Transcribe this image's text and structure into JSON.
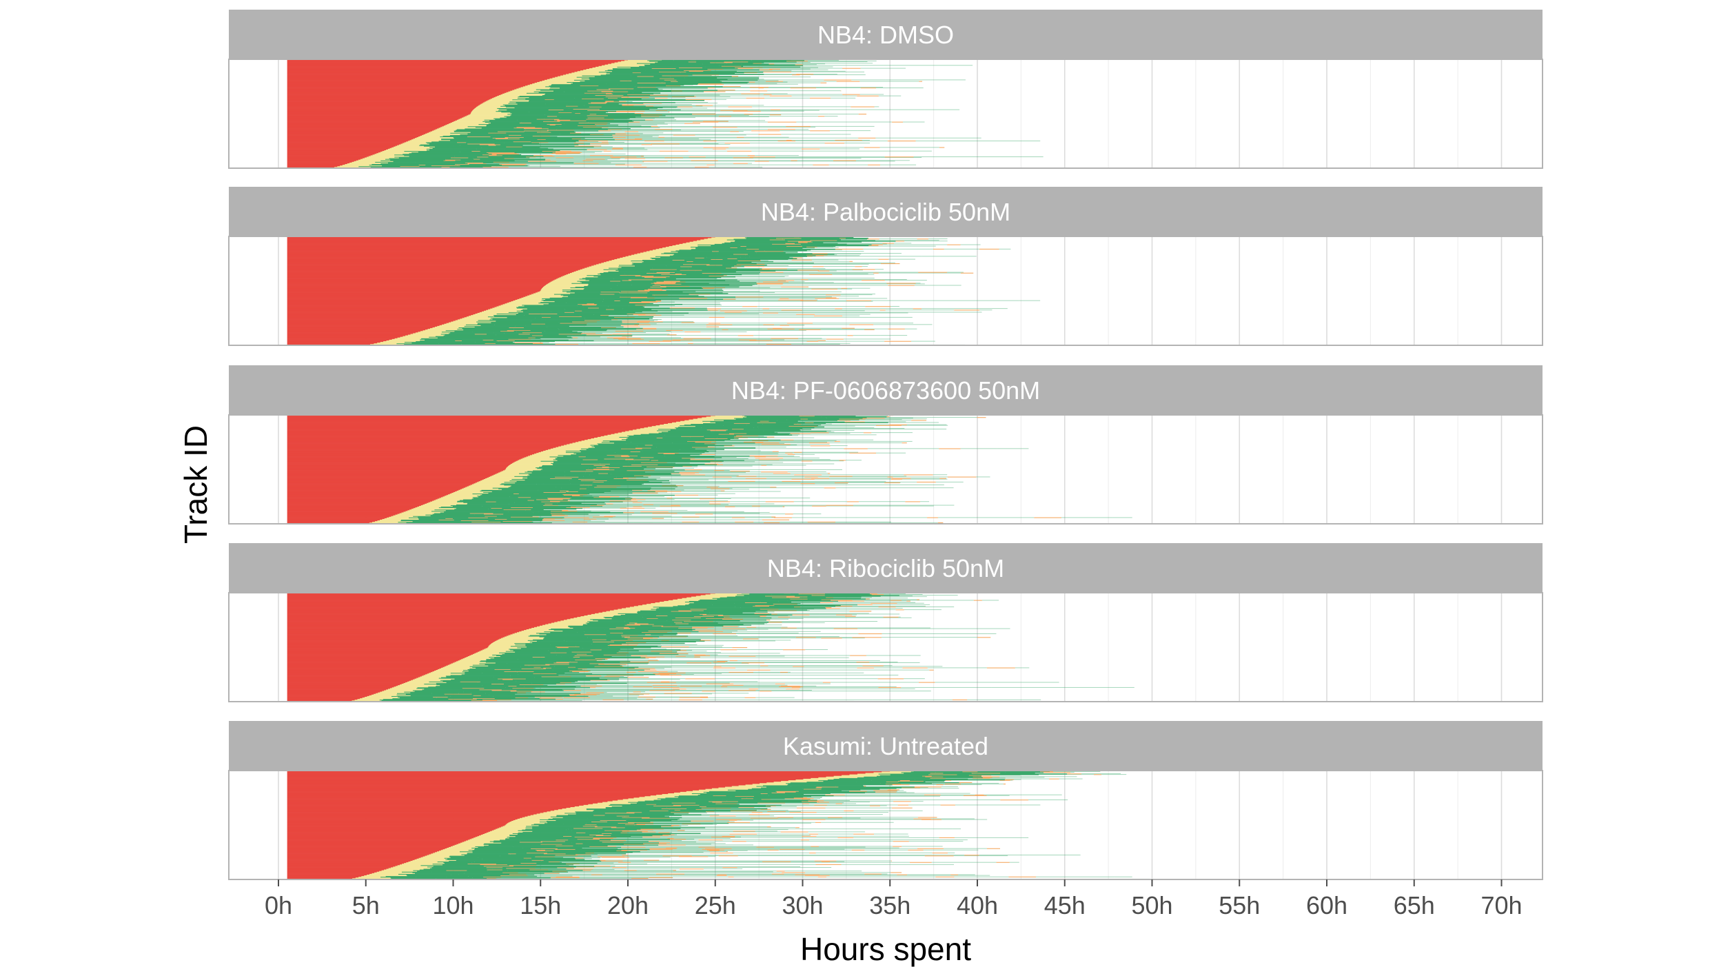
{
  "chart_data": {
    "type": "bar",
    "subtype": "faceted horizontal stacked segment tracks (one thin bar per track, sorted by first transition time)",
    "xlabel": "Hours spent",
    "ylabel": "Track ID",
    "x_unit": "h",
    "xlim": [
      -3,
      72
    ],
    "x_ticks": [
      0,
      5,
      10,
      15,
      20,
      25,
      30,
      35,
      40,
      45,
      50,
      55,
      60,
      65,
      70
    ],
    "x_tick_labels": [
      "0h",
      "5h",
      "10h",
      "15h",
      "20h",
      "25h",
      "30h",
      "35h",
      "40h",
      "45h",
      "50h",
      "55h",
      "60h",
      "65h",
      "70h"
    ],
    "grid": true,
    "legend": "none",
    "state_colors": {
      "red": "#e8473f",
      "yellow": "#f4e79a",
      "green": "#3aa86b",
      "orange": "#f39c4a"
    },
    "track_start_hours": 0.5,
    "panels": [
      {
        "title": "NB4: DMSO",
        "n_tracks": 150,
        "red_end_range_hours": [
          3,
          20
        ],
        "red_end_median_hours": 11,
        "max_track_end_hours": 50
      },
      {
        "title": "NB4: Palbociclib 50nM",
        "n_tracks": 150,
        "red_end_range_hours": [
          5,
          25
        ],
        "red_end_median_hours": 15,
        "max_track_end_hours": 49
      },
      {
        "title": "NB4: PF-0606873600 50nM",
        "n_tracks": 150,
        "red_end_range_hours": [
          5,
          25
        ],
        "red_end_median_hours": 13,
        "max_track_end_hours": 52
      },
      {
        "title": "NB4: Ribociclib 50nM",
        "n_tracks": 150,
        "red_end_range_hours": [
          4,
          25
        ],
        "red_end_median_hours": 12,
        "max_track_end_hours": 53
      },
      {
        "title": "Kasumi: Untreated",
        "n_tracks": 150,
        "red_end_range_hours": [
          4,
          35
        ],
        "red_end_median_hours": 13,
        "max_track_end_hours": 56
      }
    ]
  }
}
